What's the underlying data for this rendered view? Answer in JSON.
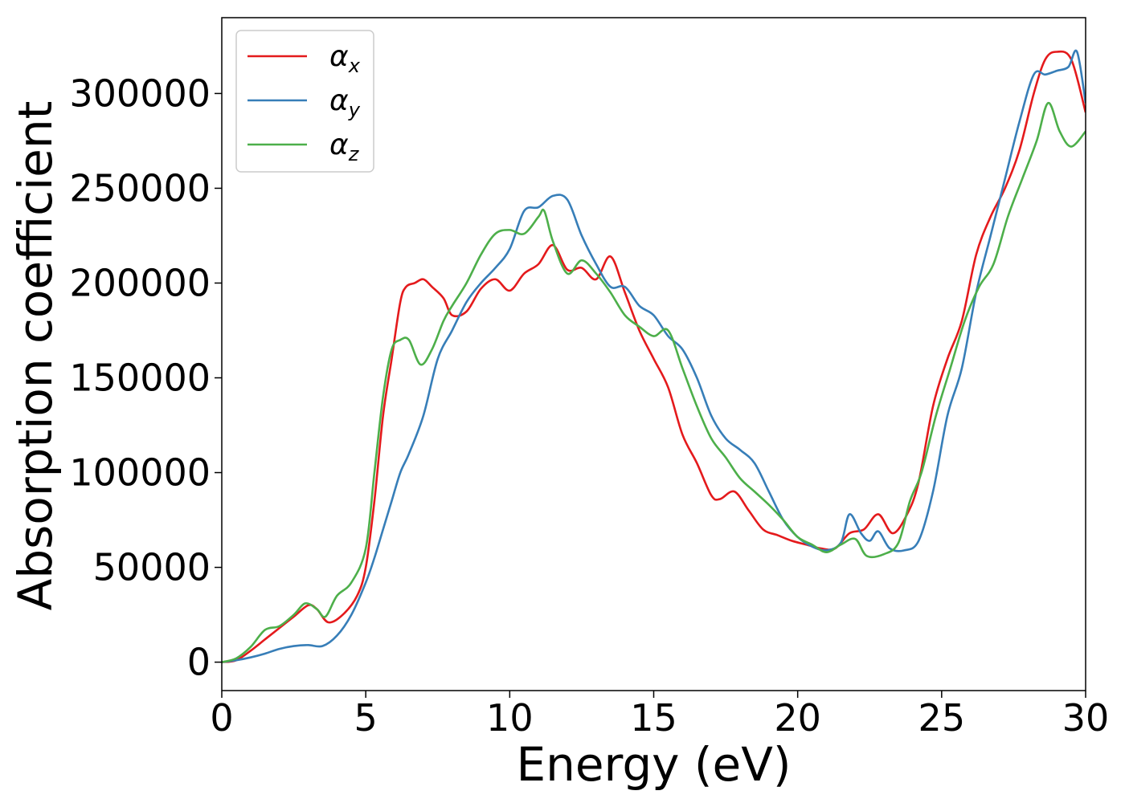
{
  "chart_data": {
    "type": "line",
    "xlabel": "Energy (eV)",
    "ylabel": "Absorption coefficient",
    "xlim": [
      0,
      30
    ],
    "ylim": [
      -15000,
      340000
    ],
    "xticks": [
      0,
      5,
      10,
      15,
      20,
      25,
      30
    ],
    "xtick_labels": [
      "0",
      "5",
      "10",
      "15",
      "20",
      "25",
      "30"
    ],
    "yticks": [
      0,
      50000,
      100000,
      150000,
      200000,
      250000,
      300000
    ],
    "ytick_labels": [
      "0",
      "50000",
      "100000",
      "150000",
      "200000",
      "250000",
      "300000"
    ],
    "grid": false,
    "legend_position": "top-left",
    "series": [
      {
        "name": "α_x",
        "legend_symbol": "α",
        "legend_sub": "x",
        "color": "#e41a1c",
        "x": [
          0,
          0.5,
          1,
          1.5,
          2,
          2.5,
          3,
          3.3,
          3.7,
          4.2,
          4.7,
          5,
          5.3,
          5.6,
          5.9,
          6.2,
          6.4,
          6.7,
          7,
          7.3,
          7.7,
          8,
          8.5,
          9,
          9.5,
          10,
          10.5,
          11,
          11.5,
          12,
          12.5,
          13,
          13.5,
          14,
          14.5,
          15,
          15.5,
          16,
          16.5,
          17,
          17.3,
          17.8,
          18.3,
          18.8,
          19.3,
          19.8,
          20.3,
          20.8,
          21.3,
          21.8,
          22.3,
          22.8,
          23.3,
          23.8,
          24.2,
          24.7,
          25.2,
          25.7,
          26.2,
          26.7,
          27.2,
          27.7,
          28.2,
          28.6,
          29,
          29.5,
          30
        ],
        "y": [
          0,
          1000,
          6000,
          12000,
          18000,
          24000,
          30000,
          28000,
          21000,
          25000,
          35000,
          50000,
          85000,
          130000,
          160000,
          190000,
          198000,
          200000,
          202000,
          198000,
          192000,
          183000,
          185000,
          197000,
          202000,
          196000,
          205000,
          210000,
          220000,
          207000,
          208000,
          202000,
          214000,
          195000,
          175000,
          160000,
          145000,
          120000,
          105000,
          88000,
          86000,
          90000,
          80000,
          70000,
          67000,
          64000,
          62000,
          60000,
          60000,
          68000,
          70000,
          78000,
          68000,
          78000,
          95000,
          135000,
          160000,
          180000,
          215000,
          235000,
          250000,
          270000,
          300000,
          318000,
          322000,
          318000,
          290000
        ]
      },
      {
        "name": "α_y",
        "legend_symbol": "α",
        "legend_sub": "y",
        "color": "#377eb8",
        "x": [
          0,
          0.5,
          1,
          1.5,
          2,
          2.5,
          3,
          3.5,
          4,
          4.5,
          5,
          5.3,
          5.6,
          5.9,
          6.2,
          6.5,
          7,
          7.5,
          8,
          8.5,
          9,
          9.5,
          10,
          10.5,
          11,
          11.5,
          12,
          12.5,
          13,
          13.5,
          14,
          14.5,
          15,
          15.5,
          16,
          16.5,
          17,
          17.5,
          18,
          18.5,
          19,
          19.5,
          20,
          20.5,
          21,
          21.5,
          21.8,
          22.2,
          22.5,
          22.8,
          23.2,
          23.7,
          24.2,
          24.7,
          25.2,
          25.7,
          26.2,
          26.7,
          27.2,
          27.7,
          28.2,
          28.6,
          29,
          29.4,
          29.7,
          30
        ],
        "y": [
          0,
          1000,
          2500,
          4500,
          7000,
          8500,
          9000,
          8500,
          14000,
          25000,
          42000,
          55000,
          70000,
          85000,
          100000,
          110000,
          130000,
          160000,
          175000,
          190000,
          200000,
          208000,
          218000,
          238000,
          240000,
          246000,
          244000,
          225000,
          210000,
          198000,
          198000,
          188000,
          183000,
          172000,
          165000,
          150000,
          130000,
          118000,
          112000,
          105000,
          90000,
          75000,
          66000,
          61000,
          59000,
          63000,
          78000,
          68000,
          64000,
          69000,
          60000,
          59000,
          64000,
          90000,
          130000,
          155000,
          195000,
          225000,
          255000,
          285000,
          310000,
          310000,
          312000,
          314000,
          322000,
          295000
        ]
      },
      {
        "name": "α_z",
        "legend_symbol": "α",
        "legend_sub": "z",
        "color": "#4daf4a",
        "x": [
          0,
          0.5,
          1,
          1.5,
          2,
          2.5,
          2.9,
          3.3,
          3.6,
          4,
          4.5,
          5,
          5.3,
          5.6,
          5.9,
          6.2,
          6.5,
          6.9,
          7.3,
          7.7,
          8,
          8.5,
          9,
          9.5,
          10,
          10.5,
          11,
          11.2,
          11.5,
          12,
          12.5,
          13,
          13.5,
          14,
          14.5,
          15,
          15.5,
          16,
          16.5,
          17,
          17.5,
          18,
          18.5,
          19,
          19.5,
          20,
          20.5,
          21,
          21.5,
          22,
          22.4,
          23,
          23.5,
          23.9,
          24.3,
          24.8,
          25.3,
          25.8,
          26.3,
          26.8,
          27.3,
          27.8,
          28.3,
          28.7,
          29.1,
          29.5,
          30
        ],
        "y": [
          0,
          2000,
          8000,
          17000,
          19000,
          25000,
          31000,
          28000,
          24000,
          35000,
          42000,
          60000,
          100000,
          140000,
          165000,
          170000,
          170000,
          157000,
          165000,
          180000,
          188000,
          200000,
          215000,
          226000,
          228000,
          226000,
          235000,
          238000,
          222000,
          205000,
          212000,
          205000,
          195000,
          183000,
          177000,
          172000,
          175000,
          155000,
          135000,
          118000,
          108000,
          97000,
          90000,
          83000,
          75000,
          66000,
          62000,
          58000,
          62000,
          65000,
          56000,
          57000,
          63000,
          85000,
          100000,
          130000,
          155000,
          180000,
          198000,
          210000,
          235000,
          255000,
          275000,
          295000,
          280000,
          272000,
          280000
        ]
      }
    ]
  }
}
